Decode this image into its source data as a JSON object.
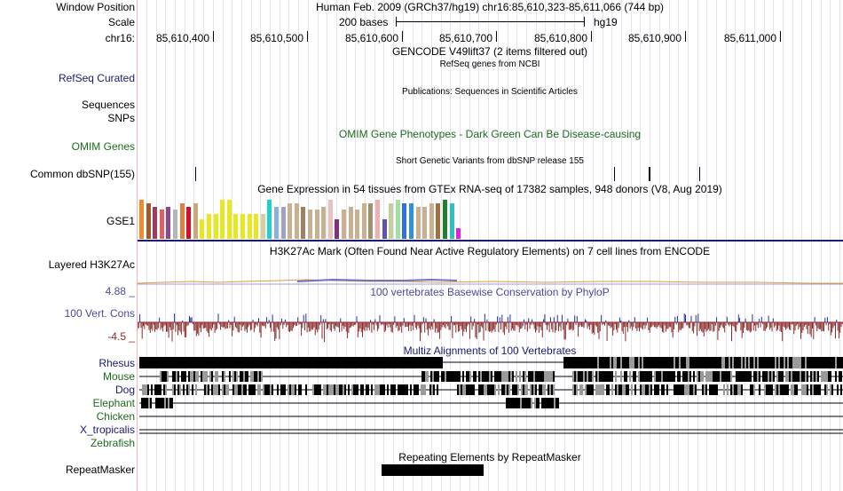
{
  "header": {
    "window_position_label": "Window Position",
    "window_position_value": "Human Feb. 2009 (GRCh37/hg19)   chr16:85,610,323-85,611,066 (744 bp)",
    "scale_label": "Scale",
    "scale_value": "200 bases",
    "scale_assembly": "hg19",
    "chrom_label": "chr16:",
    "coordinate_ticks": [
      "85,610,400",
      "85,610,500",
      "85,610,600",
      "85,610,700",
      "85,610,800",
      "85,610,900",
      "85,611,000"
    ]
  },
  "tracks": {
    "gencode": {
      "title": "GENCODE V49lift37 (2 items filtered out)"
    },
    "refseq": {
      "label": "RefSeq Curated",
      "title": "RefSeq genes from NCBI"
    },
    "publications": {
      "title": "Publications: Sequences in Scientific Articles"
    },
    "sequences": {
      "label": "Sequences"
    },
    "snps": {
      "label": "SNPs"
    },
    "omim": {
      "label": "OMIM Genes",
      "title": "OMIM Gene Phenotypes - Dark Green Can Be Disease-causing"
    },
    "dbsnp": {
      "label": "Common dbSNP(155)",
      "title": "Short Genetic Variants from dbSNP release 155"
    },
    "gtex": {
      "label": "GSE1",
      "title": "Gene Expression in 54 tissues from GTEx RNA-seq of 17382 samples, 948 donors (V8, Aug 2019)"
    },
    "h3k27ac": {
      "label": "Layered H3K27Ac",
      "title": "H3K27Ac Mark (Often Found Near Active Regulatory Elements) on 7 cell lines from ENCODE"
    },
    "phylop": {
      "label": "100 Vert. Cons",
      "title": "100 vertebrates Basewise Conservation by PhyloP",
      "max_label": "4.88 _",
      "min_label": "-4.5 _"
    },
    "multiz": {
      "title": "Multiz Alignments of 100 Vertebrates",
      "species": [
        "Rhesus",
        "Mouse",
        "Dog",
        "Elephant",
        "Chicken",
        "X_tropicalis",
        "Zebrafish"
      ]
    },
    "repeatmasker": {
      "label": "RepeatMasker",
      "title": "Repeating Elements by RepeatMasker"
    }
  },
  "colors": {
    "label_blue": "#1a1a6e",
    "label_green": "#1c6b1c",
    "phylop_pos": "#2a2a9a",
    "phylop_neg": "#8c2a2a",
    "gtex_bars": [
      "#f28c2a",
      "#a6582a",
      "#a13b5e",
      "#e06060",
      "#8a4a8a",
      "#b5b5b5",
      "#e08040",
      "#d1102a",
      "#c8a87a",
      "#e8e820",
      "#e8e820",
      "#e8e820",
      "#e8e820",
      "#e8e820",
      "#e8e820",
      "#e8e820",
      "#e8e820",
      "#e8e820",
      "#d0d0a0",
      "#20d0d0",
      "#88b0e0",
      "#a0a0c0",
      "#c8b090",
      "#c8b090",
      "#a08060",
      "#c8b090",
      "#c8b090",
      "#c8b090",
      "#e8c0c0",
      "#803080",
      "#c8b090",
      "#c8b090",
      "#c8b090",
      "#c8b090",
      "#a09070",
      "#f0b0b0",
      "#6050b0",
      "#c0d0a0",
      "#a0e0a0",
      "#3070e0",
      "#3090e0",
      "#c8b090",
      "#c8b090",
      "#c8b090",
      "#a07040",
      "#208030",
      "#30c0c0",
      "#e020e0"
    ]
  }
}
